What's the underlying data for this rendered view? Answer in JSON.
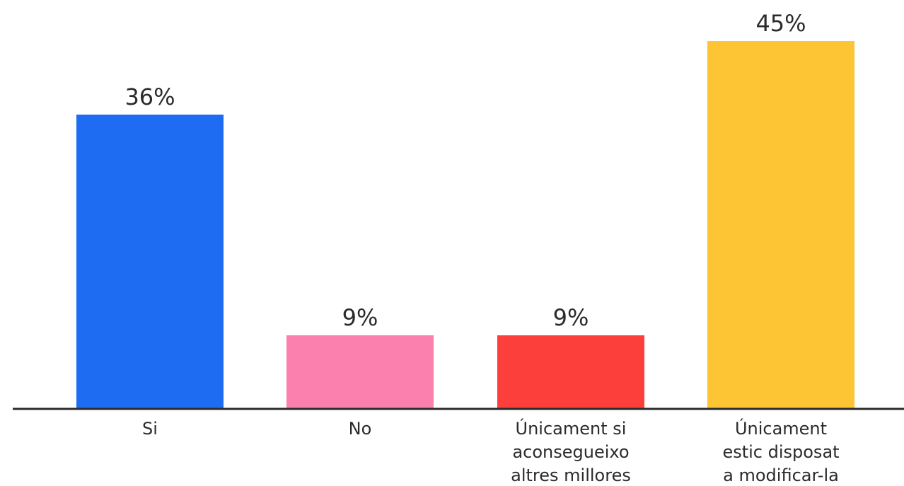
{
  "chart_data": {
    "type": "bar",
    "title": "",
    "xlabel": "",
    "ylabel": "",
    "ylim": [
      0,
      45
    ],
    "grid": false,
    "categories": [
      [
        "Si"
      ],
      [
        "No"
      ],
      [
        "Únicament si",
        "aconsegueixo",
        "altres millores"
      ],
      [
        "Únicament",
        "estic disposat",
        "a modificar-la"
      ]
    ],
    "values": [
      36,
      9,
      9,
      45
    ],
    "value_labels": [
      "36%",
      "9%",
      "9%",
      "45%"
    ],
    "colors": [
      "#1e6cf2",
      "#fb80ad",
      "#fd3f3c",
      "#fdc433"
    ],
    "axis_color": "#2b2b2b"
  }
}
